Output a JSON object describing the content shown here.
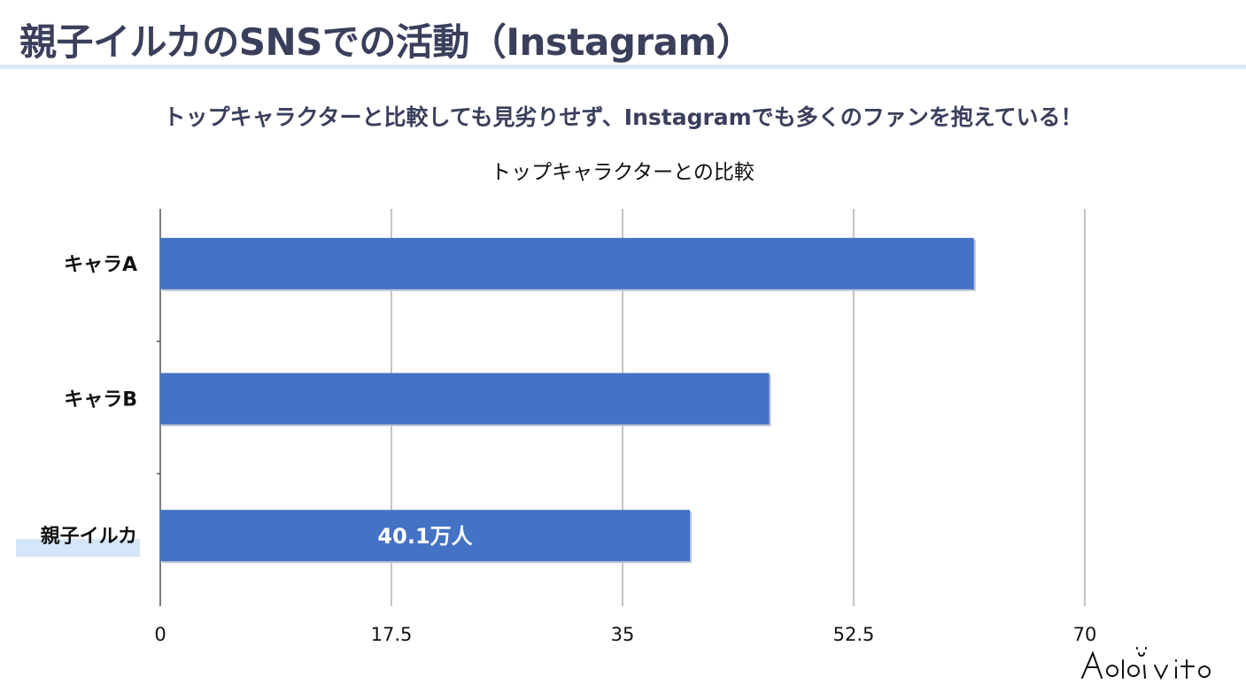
{
  "page": {
    "title": "親子イルカのSNSでの活動（Instagram）",
    "subtitle": "トップキャラクターと比較しても見劣りせず、Instagramでも多くのファンを抱えている！",
    "logo_text": "Adavito"
  },
  "colors": {
    "bar": "#4472c4",
    "title_text": "#3a3f5c",
    "rule": "#dbe8f5",
    "highlight": "#d4e6f7"
  },
  "chart_data": {
    "type": "bar",
    "orientation": "horizontal",
    "title": "トップキャラクターとの比較",
    "categories": [
      "キャラA",
      "キャラB",
      "親子イルカ"
    ],
    "values": [
      61.6,
      46.1,
      40.1
    ],
    "data_labels": [
      "",
      "",
      "40.1万人"
    ],
    "highlighted_category": "親子イルカ",
    "xlim": [
      0,
      70
    ],
    "xticks": [
      "0",
      "17.5",
      "35",
      "52.5",
      "70"
    ],
    "grid": true,
    "legend": "none"
  }
}
